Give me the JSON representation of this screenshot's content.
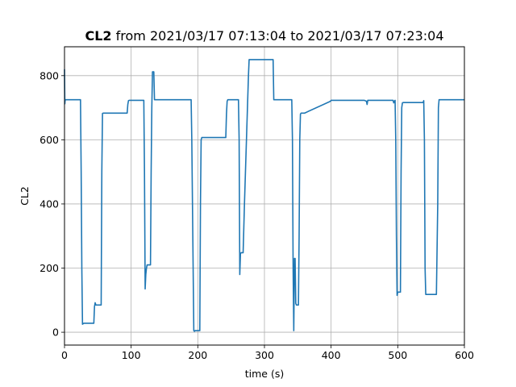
{
  "chart_data": {
    "type": "line",
    "title_bold": "CL2",
    "title_rest": " from 2021/03/17 07:13:04 to 2021/03/17 07:23:04",
    "xlabel": "time (s)",
    "ylabel": "CL2",
    "xlim": [
      0,
      600
    ],
    "ylim": [
      -40,
      890
    ],
    "xticks": [
      0,
      100,
      200,
      300,
      400,
      500,
      600
    ],
    "yticks": [
      0,
      200,
      400,
      600,
      800
    ],
    "grid": true,
    "series": [
      {
        "color": "#1f77b4",
        "x": [
          0,
          0.5,
          1,
          3,
          22,
          24,
          25,
          26,
          27,
          29,
          44,
          45,
          46,
          47,
          48,
          55,
          56,
          57,
          58,
          59,
          60,
          94,
          95,
          96,
          97,
          98,
          118,
          119,
          120,
          121,
          122,
          123,
          124,
          129,
          130,
          131,
          132,
          133,
          134,
          135,
          165,
          166,
          167,
          168,
          190,
          191,
          193,
          194,
          195,
          196,
          197,
          200,
          203,
          204,
          205,
          206,
          207,
          240,
          241,
          242,
          243,
          244,
          245,
          246,
          247,
          260,
          261,
          262,
          263,
          264,
          265,
          266,
          267,
          268,
          270,
          276,
          277,
          278,
          279,
          280,
          300,
          310,
          313,
          314,
          315,
          316,
          317,
          340,
          341,
          342,
          343,
          344,
          345,
          346,
          347,
          348,
          350,
          351,
          352,
          353,
          354,
          355,
          356,
          357,
          358,
          360,
          399,
          400,
          401,
          402,
          403,
          450,
          453,
          454,
          455,
          456,
          457,
          490,
          491,
          493,
          494,
          495,
          496,
          497,
          498,
          499,
          500,
          501,
          502,
          504,
          505,
          506,
          507,
          508,
          509,
          510,
          538,
          539,
          540,
          541,
          542,
          543,
          557,
          558,
          560,
          561,
          562,
          563,
          564,
          565,
          567,
          600
        ],
        "y": [
          820,
          712,
          725,
          725,
          725,
          725,
          500,
          200,
          25,
          28,
          28,
          80,
          92,
          85,
          85,
          85,
          500,
          682,
          683,
          683,
          683,
          683,
          710,
          722,
          723,
          723,
          723,
          723,
          500,
          135,
          180,
          200,
          210,
          210,
          500,
          700,
          812,
          812,
          812,
          725,
          725,
          725,
          725,
          725,
          725,
          600,
          200,
          5,
          3,
          5,
          5,
          5,
          5,
          400,
          600,
          607,
          607,
          607,
          607,
          607,
          680,
          720,
          725,
          725,
          725,
          725,
          725,
          600,
          180,
          245,
          248,
          248,
          248,
          248,
          400,
          800,
          850,
          850,
          850,
          850,
          850,
          850,
          850,
          725,
          725,
          725,
          725,
          725,
          725,
          600,
          200,
          5,
          230,
          230,
          90,
          85,
          85,
          85,
          300,
          600,
          680,
          683,
          683,
          683,
          683,
          683,
          720,
          723,
          723,
          723,
          723,
          723,
          720,
          710,
          723,
          723,
          723,
          723,
          723,
          723,
          715,
          720,
          723,
          600,
          300,
          115,
          125,
          125,
          125,
          125,
          500,
          700,
          715,
          716,
          716,
          716,
          716,
          722,
          600,
          200,
          118,
          118,
          118,
          118,
          400,
          700,
          725,
          725,
          725,
          725,
          725,
          725
        ]
      }
    ]
  }
}
